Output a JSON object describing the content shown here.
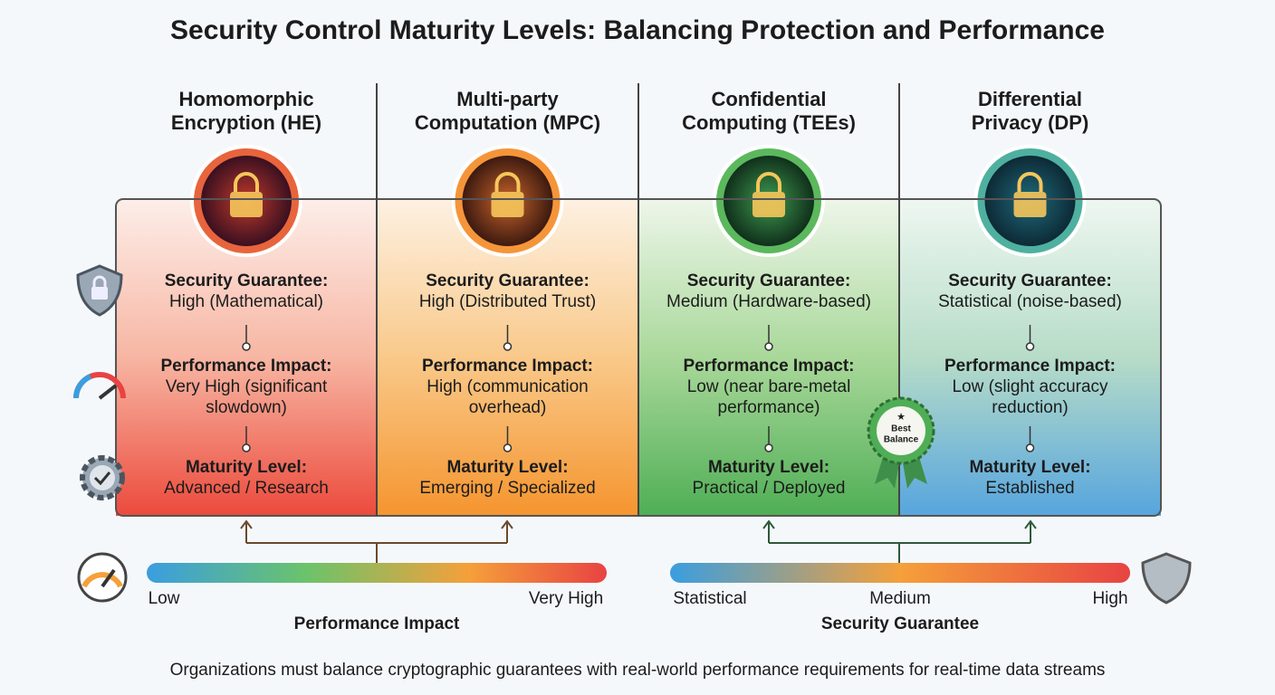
{
  "title": "Security Control Maturity Levels: Balancing Protection and Performance",
  "columns": [
    {
      "title_lines": [
        "Homomorphic",
        "Encryption (HE)"
      ],
      "security_label": "Security Guarantee:",
      "security_lines": [
        "High (Mathematical)"
      ],
      "performance_label": "Performance Impact:",
      "performance_lines": [
        "Very High (significant",
        "slowdown)"
      ],
      "maturity_label": "Maturity Level:",
      "maturity_lines": [
        "Advanced / Research"
      ]
    },
    {
      "title_lines": [
        "Multi-party",
        "Computation (MPC)"
      ],
      "security_label": "Security Guarantee:",
      "security_lines": [
        "High (Distributed Trust)"
      ],
      "performance_label": "Performance Impact:",
      "performance_lines": [
        "High (communication",
        "overhead)"
      ],
      "maturity_label": "Maturity Level:",
      "maturity_lines": [
        "Emerging / Specialized"
      ]
    },
    {
      "title_lines": [
        "Confidential",
        "Computing (TEEs)"
      ],
      "security_label": "Security Guarantee:",
      "security_lines": [
        "Medium (Hardware-based)"
      ],
      "performance_label": "Performance Impact:",
      "performance_lines": [
        "Low (near bare-metal",
        "performance)"
      ],
      "maturity_label": "Maturity Level:",
      "maturity_lines": [
        "Practical / Deployed"
      ]
    },
    {
      "title_lines": [
        "Differential",
        "Privacy (DP)"
      ],
      "security_label": "Security Guarantee:",
      "security_lines": [
        "Statistical (noise-based)"
      ],
      "performance_label": "Performance Impact:",
      "performance_lines": [
        "Low (slight accuracy",
        "reduction)"
      ],
      "maturity_label": "Maturity Level:",
      "maturity_lines": [
        "Established"
      ]
    }
  ],
  "badge_lines": [
    "Best",
    "Balance"
  ],
  "performance_scale": {
    "title": "Performance Impact",
    "labels": [
      "Low",
      "Very High"
    ]
  },
  "security_scale": {
    "title": "Security Guarantee",
    "labels": [
      "Statistical",
      "Medium",
      "High"
    ]
  },
  "footer": "Organizations must balance cryptographic guarantees with real-world performance requirements for real-time data streams"
}
